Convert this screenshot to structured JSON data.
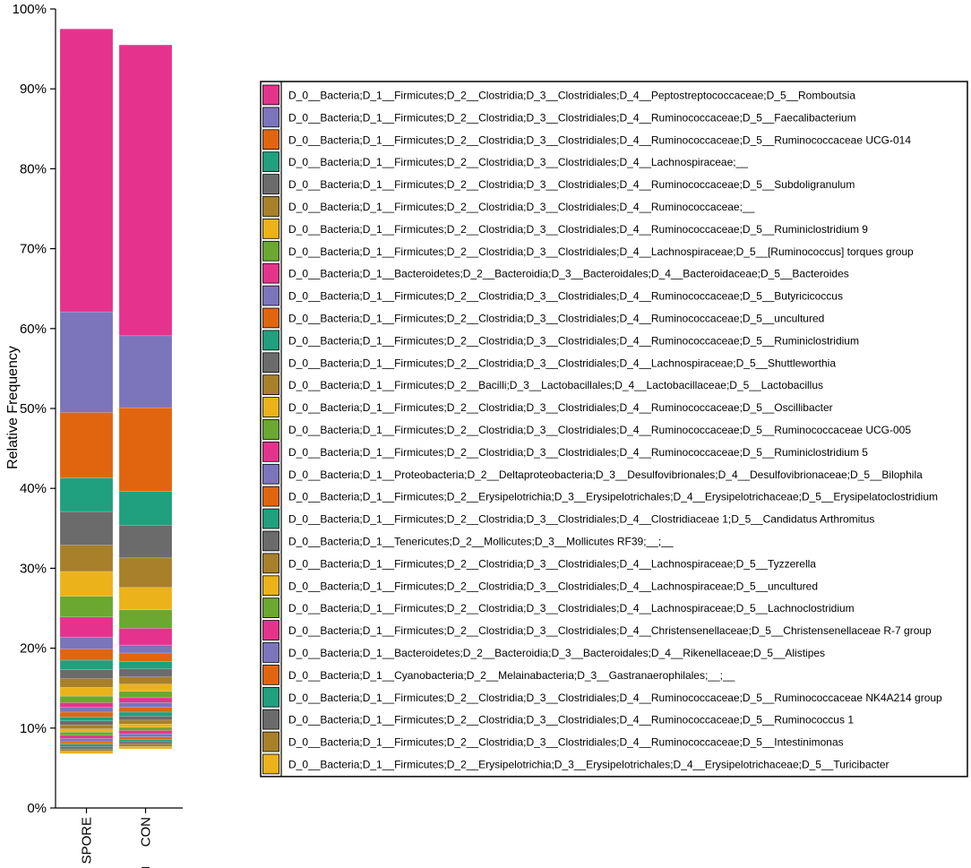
{
  "chart_data": {
    "type": "bar",
    "stacked": true,
    "normalized": true,
    "ylabel": "Relative Frequency",
    "xlabel": "",
    "ylim": [
      0,
      100
    ],
    "y_ticks": [
      "0%",
      "10%",
      "20%",
      "30%",
      "40%",
      "50%",
      "60%",
      "70%",
      "80%",
      "90%",
      "100%"
    ],
    "categories": [
      "SPORE",
      "CON"
    ],
    "x_note": "_",
    "bar_base": [
      6.8,
      7.4
    ],
    "palette": [
      "#e5338d",
      "#7c75bc",
      "#e1650f",
      "#20a07d",
      "#6b6b6b",
      "#a8802a",
      "#ebb319",
      "#6aa82f"
    ],
    "series": [
      {
        "name": "D_0__Bacteria;D_1__Firmicutes;D_2__Clostridia;D_3__Clostridiales;D_4__Peptostreptococcaceae;D_5__Romboutsia",
        "values": [
          35.4,
          36.4
        ]
      },
      {
        "name": "D_0__Bacteria;D_1__Firmicutes;D_2__Clostridia;D_3__Clostridiales;D_4__Ruminococcaceae;D_5__Faecalibacterium",
        "values": [
          12.6,
          9.0
        ]
      },
      {
        "name": "D_0__Bacteria;D_1__Firmicutes;D_2__Clostridia;D_3__Clostridiales;D_4__Ruminococcaceae;D_5__Ruminococcaceae UCG-014",
        "values": [
          8.2,
          10.5
        ]
      },
      {
        "name": "D_0__Bacteria;D_1__Firmicutes;D_2__Clostridia;D_3__Clostridiales;D_4__Lachnospiraceae;__",
        "values": [
          4.2,
          4.2
        ]
      },
      {
        "name": "D_0__Bacteria;D_1__Firmicutes;D_2__Clostridia;D_3__Clostridiales;D_4__Ruminococcaceae;D_5__Subdoligranulum",
        "values": [
          4.2,
          4.1
        ]
      },
      {
        "name": "D_0__Bacteria;D_1__Firmicutes;D_2__Clostridia;D_3__Clostridiales;D_4__Ruminococcaceae;__",
        "values": [
          3.3,
          3.7
        ]
      },
      {
        "name": "D_0__Bacteria;D_1__Firmicutes;D_2__Clostridia;D_3__Clostridiales;D_4__Ruminococcaceae;D_5__Ruminiclostridium 9",
        "values": [
          3.1,
          2.8
        ]
      },
      {
        "name": "D_0__Bacteria;D_1__Firmicutes;D_2__Clostridia;D_3__Clostridiales;D_4__Lachnospiraceae;D_5__[Ruminococcus] torques group",
        "values": [
          2.6,
          2.3
        ]
      },
      {
        "name": "D_0__Bacteria;D_1__Bacteroidetes;D_2__Bacteroidia;D_3__Bacteroidales;D_4__Bacteroidaceae;D_5__Bacteroides",
        "values": [
          2.5,
          2.1
        ]
      },
      {
        "name": "D_0__Bacteria;D_1__Firmicutes;D_2__Clostridia;D_3__Clostridiales;D_4__Ruminococcaceae;D_5__Butyricicoccus",
        "values": [
          1.5,
          1.0
        ]
      },
      {
        "name": "D_0__Bacteria;D_1__Firmicutes;D_2__Clostridia;D_3__Clostridiales;D_4__Ruminococcaceae;D_5__uncultured",
        "values": [
          1.4,
          1.1
        ]
      },
      {
        "name": "D_0__Bacteria;D_1__Firmicutes;D_2__Clostridia;D_3__Clostridiales;D_4__Ruminococcaceae;D_5__Ruminiclostridium",
        "values": [
          1.2,
          0.9
        ]
      },
      {
        "name": "D_0__Bacteria;D_1__Firmicutes;D_2__Clostridia;D_3__Clostridiales;D_4__Lachnospiraceae;D_5__Shuttleworthia",
        "values": [
          1.1,
          1.0
        ]
      },
      {
        "name": "D_0__Bacteria;D_1__Firmicutes;D_2__Bacilli;D_3__Lactobacillales;D_4__Lactobacillaceae;D_5__Lactobacillus",
        "values": [
          1.1,
          0.9
        ]
      },
      {
        "name": "D_0__Bacteria;D_1__Firmicutes;D_2__Clostridia;D_3__Clostridiales;D_4__Ruminococcaceae;D_5__Oscillibacter",
        "values": [
          1.1,
          0.9
        ]
      },
      {
        "name": "D_0__Bacteria;D_1__Firmicutes;D_2__Clostridia;D_3__Clostridiales;D_4__Ruminococcaceae;D_5__Ruminococcaceae UCG-005",
        "values": [
          0.8,
          0.8
        ]
      },
      {
        "name": "D_0__Bacteria;D_1__Firmicutes;D_2__Clostridia;D_3__Clostridiales;D_4__Ruminococcaceae;D_5__Ruminiclostridium 5",
        "values": [
          0.6,
          0.6
        ]
      },
      {
        "name": "D_0__Bacteria;D_1__Proteobacteria;D_2__Deltaproteobacteria;D_3__Desulfovibrionales;D_4__Desulfovibrionaceae;D_5__Bilophila",
        "values": [
          0.6,
          0.6
        ]
      },
      {
        "name": "D_0__Bacteria;D_1__Firmicutes;D_2__Erysipelotrichia;D_3__Erysipelotrichales;D_4__Erysipelotrichaceae;D_5__Erysipelatoclostridium",
        "values": [
          0.6,
          0.6
        ]
      },
      {
        "name": "D_0__Bacteria;D_1__Firmicutes;D_2__Clostridia;D_3__Clostridiales;D_4__Clostridiaceae 1;D_5__Candidatus Arthromitus",
        "values": [
          0.5,
          0.5
        ]
      },
      {
        "name": "D_0__Bacteria;D_1__Tenericutes;D_2__Mollicutes;D_3__Mollicutes RF39;__;__",
        "values": [
          0.5,
          0.5
        ]
      },
      {
        "name": "D_0__Bacteria;D_1__Firmicutes;D_2__Clostridia;D_3__Clostridiales;D_4__Lachnospiraceae;D_5__Tyzzerella",
        "values": [
          0.5,
          0.5
        ]
      },
      {
        "name": "D_0__Bacteria;D_1__Firmicutes;D_2__Clostridia;D_3__Clostridiales;D_4__Lachnospiraceae;D_5__uncultured",
        "values": [
          0.4,
          0.4
        ]
      },
      {
        "name": "D_0__Bacteria;D_1__Firmicutes;D_2__Clostridia;D_3__Clostridiales;D_4__Lachnospiraceae;D_5__Lachnoclostridium",
        "values": [
          0.4,
          0.4
        ]
      },
      {
        "name": "D_0__Bacteria;D_1__Firmicutes;D_2__Clostridia;D_3__Clostridiales;D_4__Christensenellaceae;D_5__Christensenellaceae R-7 group",
        "values": [
          0.4,
          0.4
        ]
      },
      {
        "name": "D_0__Bacteria;D_1__Bacteroidetes;D_2__Bacteroidia;D_3__Bacteroidales;D_4__Rikenellaceae;D_5__Alistipes",
        "values": [
          0.4,
          0.4
        ]
      },
      {
        "name": "D_0__Bacteria;D_1__Cyanobacteria;D_2__Melainabacteria;D_3__Gastranaerophilales;__;__",
        "values": [
          0.3,
          0.3
        ]
      },
      {
        "name": "D_0__Bacteria;D_1__Firmicutes;D_2__Clostridia;D_3__Clostridiales;D_4__Ruminococcaceae;D_5__Ruminococcaceae NK4A214 group",
        "values": [
          0.3,
          0.3
        ]
      },
      {
        "name": "D_0__Bacteria;D_1__Firmicutes;D_2__Clostridia;D_3__Clostridiales;D_4__Ruminococcaceae;D_5__Ruminococcus 1",
        "values": [
          0.3,
          0.3
        ]
      },
      {
        "name": "D_0__Bacteria;D_1__Firmicutes;D_2__Clostridia;D_3__Clostridiales;D_4__Ruminococcaceae;D_5__Intestinimonas",
        "values": [
          0.3,
          0.3
        ]
      },
      {
        "name": "D_0__Bacteria;D_1__Firmicutes;D_2__Erysipelotrichia;D_3__Erysipelotrichales;D_4__Erysipelotrichaceae;D_5__Turicibacter",
        "values": [
          0.3,
          0.3
        ]
      }
    ],
    "legend_position": "right"
  }
}
